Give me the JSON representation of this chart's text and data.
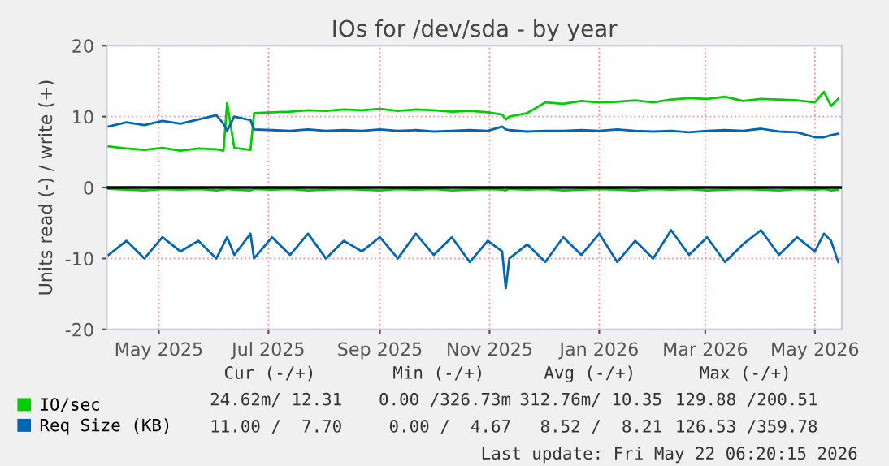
{
  "chart_data": {
    "type": "line",
    "title": "IOs for /dev/sda - by year",
    "ylabel": "Units read (-) / write (+)",
    "x": [
      "2025-04-03",
      "2025-04-13",
      "2025-04-23",
      "2025-05-03",
      "2025-05-13",
      "2025-05-23",
      "2025-06-02",
      "2025-06-06",
      "2025-06-08",
      "2025-06-12",
      "2025-06-21",
      "2025-06-23",
      "2025-07-03",
      "2025-07-13",
      "2025-07-23",
      "2025-08-02",
      "2025-08-12",
      "2025-08-22",
      "2025-09-01",
      "2025-09-11",
      "2025-09-21",
      "2025-10-01",
      "2025-10-11",
      "2025-10-21",
      "2025-10-31",
      "2025-11-08",
      "2025-11-10",
      "2025-11-12",
      "2025-11-22",
      "2025-12-02",
      "2025-12-12",
      "2025-12-22",
      "2026-01-01",
      "2026-01-11",
      "2026-01-21",
      "2026-01-31",
      "2026-02-10",
      "2026-02-20",
      "2026-03-02",
      "2026-03-12",
      "2026-03-22",
      "2026-04-01",
      "2026-04-11",
      "2026-04-21",
      "2026-05-01",
      "2026-05-06",
      "2026-05-10",
      "2026-05-14"
    ],
    "series": [
      {
        "name": "IO/sec",
        "color": "#00cc00",
        "values": [
          5.8,
          5.5,
          5.3,
          5.6,
          5.2,
          5.5,
          5.4,
          5.2,
          11.9,
          5.6,
          5.3,
          10.5,
          10.6,
          10.7,
          10.9,
          10.8,
          11.0,
          10.9,
          11.1,
          10.8,
          11.0,
          10.9,
          10.7,
          10.8,
          10.6,
          10.3,
          9.6,
          10.0,
          10.5,
          12.0,
          11.8,
          12.2,
          12.0,
          12.1,
          12.3,
          12.0,
          12.4,
          12.6,
          12.5,
          12.8,
          12.2,
          12.5,
          12.4,
          12.3,
          12.0,
          13.5,
          11.5,
          12.5
        ]
      },
      {
        "color": "#00cc00",
        "values": [
          -0.2,
          -0.3,
          -0.4,
          -0.2,
          -0.3,
          -0.2,
          -0.4,
          -0.3,
          -0.2,
          -0.3,
          -0.4,
          -0.2,
          -0.3,
          -0.2,
          -0.4,
          -0.3,
          -0.2,
          -0.3,
          -0.4,
          -0.2,
          -0.3,
          -0.2,
          -0.4,
          -0.3,
          -0.2,
          -0.3,
          -0.4,
          -0.2,
          -0.3,
          -0.2,
          -0.4,
          -0.3,
          -0.2,
          -0.3,
          -0.4,
          -0.2,
          -0.3,
          -0.2,
          -0.4,
          -0.3,
          -0.2,
          -0.3,
          -0.4,
          -0.2,
          -0.3,
          -0.2,
          -0.4,
          -0.3
        ]
      },
      {
        "name": "Req Size (KB)",
        "color": "#0066b3",
        "values": [
          8.6,
          9.2,
          8.8,
          9.4,
          9.0,
          9.6,
          10.2,
          9.0,
          8.0,
          10.0,
          9.5,
          8.2,
          8.1,
          8.0,
          8.2,
          8.0,
          8.1,
          8.0,
          8.2,
          8.0,
          8.1,
          7.9,
          8.0,
          8.1,
          8.0,
          8.6,
          8.2,
          8.1,
          7.9,
          8.0,
          8.0,
          8.1,
          8.0,
          8.2,
          8.0,
          7.9,
          8.0,
          7.8,
          8.0,
          8.1,
          8.0,
          8.3,
          7.9,
          7.8,
          7.1,
          7.1,
          7.4,
          7.6
        ]
      },
      {
        "color": "#0066b3",
        "values": [
          -9.5,
          -7.5,
          -10.0,
          -7.0,
          -9.0,
          -7.5,
          -10.0,
          -8.0,
          -7.0,
          -9.5,
          -6.5,
          -10.0,
          -7.0,
          -9.5,
          -6.5,
          -10.0,
          -7.5,
          -9.0,
          -7.0,
          -10.0,
          -6.5,
          -9.5,
          -7.0,
          -10.5,
          -7.5,
          -9.0,
          -14.2,
          -10.0,
          -8.0,
          -10.5,
          -7.0,
          -9.5,
          -6.5,
          -10.5,
          -7.5,
          -10.0,
          -6.0,
          -9.5,
          -7.0,
          -10.5,
          -8.0,
          -6.0,
          -9.5,
          -7.0,
          -9.0,
          -6.5,
          -7.5,
          -10.5
        ]
      }
    ],
    "xlim": [
      "2025-04-02",
      "2026-05-16"
    ],
    "xticks": [
      {
        "value": "2025-05-01",
        "label": "May 2025"
      },
      {
        "value": "2025-07-01",
        "label": "Jul 2025"
      },
      {
        "value": "2025-09-01",
        "label": "Sep 2025"
      },
      {
        "value": "2025-11-01",
        "label": "Nov 2025"
      },
      {
        "value": "2026-01-01",
        "label": "Jan 2026"
      },
      {
        "value": "2026-03-01",
        "label": "Mar 2026"
      },
      {
        "value": "2026-05-01",
        "label": "May 2026"
      }
    ],
    "ylim": [
      -20,
      20
    ],
    "yticks": [
      -20,
      -10,
      0,
      10,
      20
    ],
    "ref_lines": [
      {
        "axis": "y",
        "value": 0,
        "color": "#000000"
      }
    ],
    "grid": true,
    "legend": "bottom",
    "annotations": [
      "Cur (-/+)",
      "Min (-/+)",
      "Avg (-/+)",
      "Max (-/+)",
      "24.62m/ 12.31",
      "0.00 /326.73m",
      "312.76m/ 10.35",
      "129.88 /200.51",
      "11.00 /  7.70",
      "0.00 /  4.67",
      "8.52 /  8.21",
      "126.53 /359.78",
      "Last update: Fri May 22 06:20:15 2026"
    ]
  }
}
